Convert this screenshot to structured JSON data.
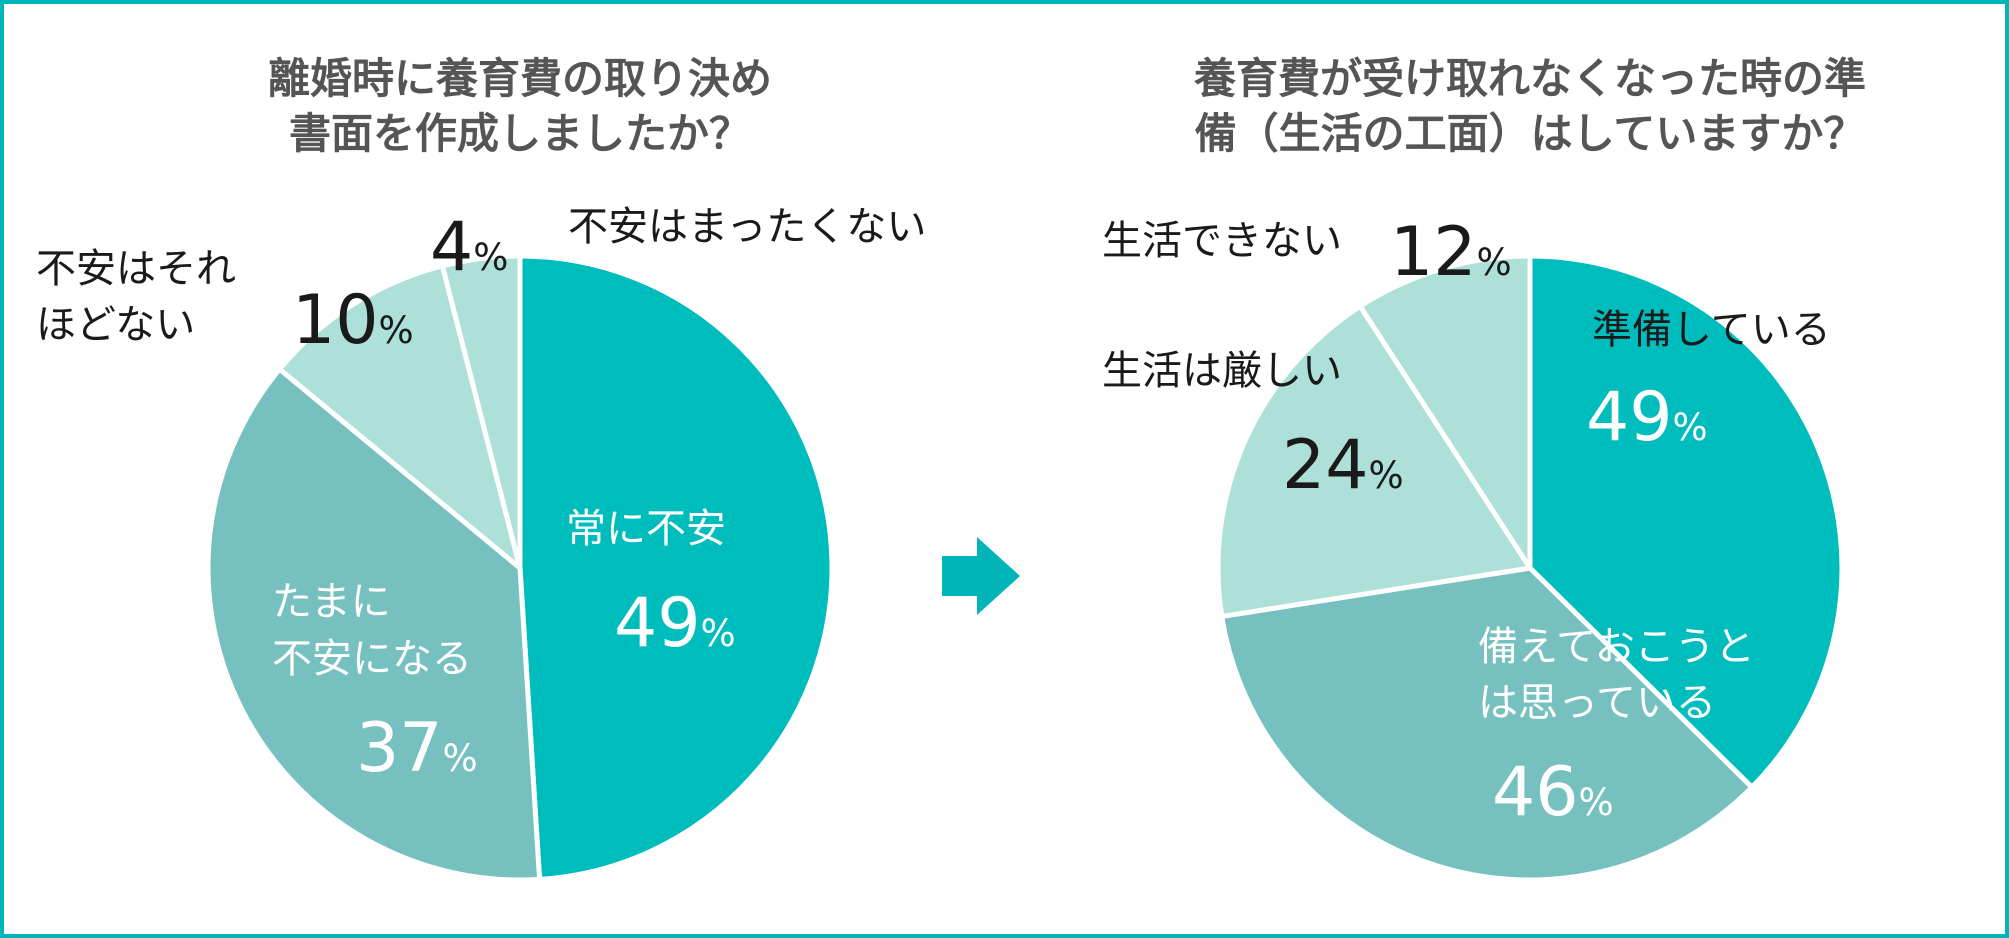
{
  "chart_data": [
    {
      "type": "pie",
      "title_lines": [
        "離婚時に養育費の取り決め",
        "書面を作成しましたか？"
      ],
      "unit": "%",
      "slices": [
        {
          "label": "常に不安",
          "value": 49,
          "color": "#00BDBD"
        },
        {
          "label_lines": [
            "たまに",
            "不安になる"
          ],
          "value": 37,
          "color": "#76C1C0"
        },
        {
          "label_lines": [
            "不安はそれ",
            "ほどない"
          ],
          "value": 10,
          "color": "#ACE0D8"
        },
        {
          "label": "不安はまったくない",
          "value": 4,
          "color": "#ACE0D8"
        }
      ]
    },
    {
      "type": "pie",
      "title_lines": [
        "養育費が受け取れなくなった時の準",
        "備（生活の工面）はしていますか？"
      ],
      "unit": "%",
      "slices": [
        {
          "label": "準備している",
          "value": 49,
          "color": "#00BDBD"
        },
        {
          "label_lines": [
            "備えておこうと",
            "は思っている"
          ],
          "value": 46,
          "color": "#76C1C0"
        },
        {
          "label": "生活は厳しい",
          "value": 24,
          "color": "#ACE0D8"
        },
        {
          "label": "生活できない",
          "value": 12,
          "color": "#ACE0D8"
        }
      ]
    }
  ],
  "colors": {
    "border": "#00B5B8",
    "arrow": "#00B5B8",
    "title": "#555555",
    "dark_text": "#1a1a1a",
    "light_text": "#ffffff"
  }
}
